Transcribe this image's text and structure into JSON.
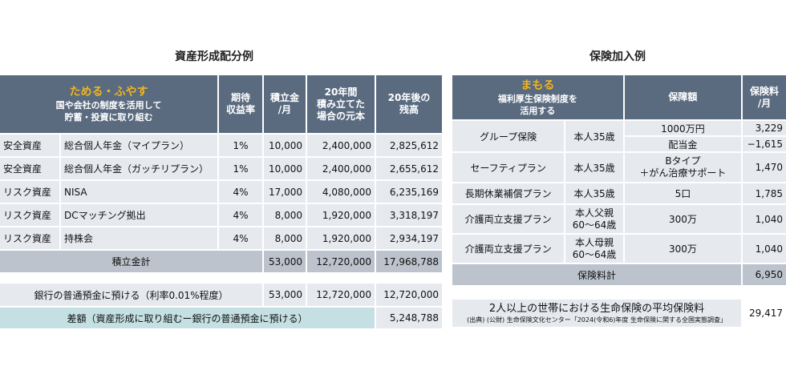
{
  "left": {
    "title": "資産形成配分例",
    "header": {
      "main_accent": "ためる・ふやす",
      "main_sub": "国や会社の制度を活用して\n貯蓄・投資に取り組む",
      "rate": "期待\n収益率",
      "monthly": "積立金\n/月",
      "principal": "20年間\n積み立てた\n場合の元本",
      "balance": "20年後の\n残高"
    },
    "rows": [
      {
        "type": "安全資産",
        "name": "総合個人年金（マイプラン）",
        "rate": "1%",
        "monthly": "10,000",
        "principal": "2,400,000",
        "balance": "2,825,612"
      },
      {
        "type": "安全資産",
        "name": "総合個人年金（ガッチリプラン）",
        "rate": "1%",
        "monthly": "10,000",
        "principal": "2,400,000",
        "balance": "2,655,612"
      },
      {
        "type": "リスク資産",
        "name": "NISA",
        "rate": "4%",
        "monthly": "17,000",
        "principal": "4,080,000",
        "balance": "6,235,169"
      },
      {
        "type": "リスク資産",
        "name": "DCマッチング拠出",
        "rate": "4%",
        "monthly": "8,000",
        "principal": "1,920,000",
        "balance": "3,318,197"
      },
      {
        "type": "リスク資産",
        "name": "持株会",
        "rate": "4%",
        "monthly": "8,000",
        "principal": "1,920,000",
        "balance": "2,934,197"
      }
    ],
    "total": {
      "label": "積立金計",
      "monthly": "53,000",
      "principal": "12,720,000",
      "balance": "17,968,788"
    },
    "bank": {
      "label": "銀行の普通預金に預ける（利率0.01%程度）",
      "monthly": "53,000",
      "principal": "12,720,000",
      "balance": "12,720,000"
    },
    "diff": {
      "label": "差額（資産形成に取り組むー銀行の普通預金に預ける）",
      "value": "5,248,788"
    }
  },
  "right": {
    "title": "保険加入例",
    "header": {
      "main_accent": "まもる",
      "main_sub": "福利厚生保険制度を\n活用する",
      "coverage": "保障額",
      "premium": "保険料\n/月"
    },
    "rows": [
      {
        "plan": "グループ保険",
        "insured": "本人35歳",
        "coverage": "1000万円",
        "premium": "3,229"
      },
      {
        "coverage": "配当金",
        "premium": "−1,615"
      },
      {
        "plan": "セーフティプラン",
        "insured": "本人35歳",
        "coverage": "Bタイプ\n＋がん治療サポート",
        "premium": "1,470"
      },
      {
        "plan": "長期休業補償プラン",
        "insured": "本人35歳",
        "coverage": "5口",
        "premium": "1,785"
      },
      {
        "plan": "介護両立支援プラン",
        "insured": "本人父親\n60～64歳",
        "coverage": "300万",
        "premium": "1,040"
      },
      {
        "plan": "介護両立支援プラン",
        "insured": "本人母親\n60～64歳",
        "coverage": "300万",
        "premium": "1,040"
      }
    ],
    "total": {
      "label": "保険料計",
      "value": "6,950"
    },
    "average": {
      "label": "2人以上の世帯における生命保険の平均保険料",
      "source": "(出典) (公財) 生命保険文化センター「2024(令和6)年度 生命保険に関する全国実態調査」",
      "value": "29,417"
    }
  }
}
